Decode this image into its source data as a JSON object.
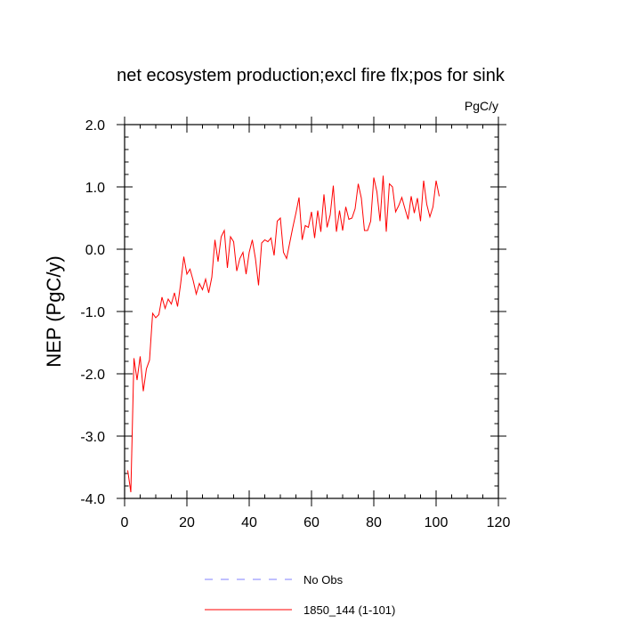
{
  "chart_data": {
    "type": "line",
    "title": "net ecosystem production;excl fire flx;pos for sink",
    "units": "PgC/y",
    "xlabel": "",
    "ylabel": "NEP  (PgC/y)",
    "xlim": [
      0,
      120
    ],
    "ylim": [
      -4.0,
      2.0
    ],
    "xticks": [
      0,
      20,
      40,
      60,
      80,
      100,
      120
    ],
    "xtick_labels": [
      "0",
      "20",
      "40",
      "60",
      "80",
      "100",
      "120"
    ],
    "yticks": [
      -4.0,
      -3.0,
      -2.0,
      -1.0,
      0.0,
      1.0,
      2.0
    ],
    "ytick_labels": [
      "-4.0",
      "-3.0",
      "-2.0",
      "-1.0",
      "0.0",
      "1.0",
      "2.0"
    ],
    "grid": false,
    "legend_position": "bottom-center",
    "series": [
      {
        "name": "No Obs",
        "color": "#8080ff",
        "dashed": true,
        "x": [],
        "values": []
      },
      {
        "name": "1850_144 (1-101)",
        "color": "#ff0000",
        "dashed": false,
        "x": [
          1,
          2,
          3,
          4,
          5,
          6,
          7,
          8,
          9,
          10,
          11,
          12,
          13,
          14,
          15,
          16,
          17,
          18,
          19,
          20,
          21,
          22,
          23,
          24,
          25,
          26,
          27,
          28,
          29,
          30,
          31,
          32,
          33,
          34,
          35,
          36,
          37,
          38,
          39,
          40,
          41,
          42,
          43,
          44,
          45,
          46,
          47,
          48,
          49,
          50,
          51,
          52,
          53,
          54,
          55,
          56,
          57,
          58,
          59,
          60,
          61,
          62,
          63,
          64,
          65,
          66,
          67,
          68,
          69,
          70,
          71,
          72,
          73,
          74,
          75,
          76,
          77,
          78,
          79,
          80,
          81,
          82,
          83,
          84,
          85,
          86,
          87,
          88,
          89,
          90,
          91,
          92,
          93,
          94,
          95,
          96,
          97,
          98,
          99,
          100,
          101
        ],
        "values": [
          -3.55,
          -3.9,
          -1.75,
          -2.1,
          -1.72,
          -2.28,
          -1.92,
          -1.78,
          -1.03,
          -1.1,
          -1.05,
          -0.77,
          -0.95,
          -0.8,
          -0.88,
          -0.7,
          -0.92,
          -0.55,
          -0.12,
          -0.4,
          -0.32,
          -0.5,
          -0.72,
          -0.55,
          -0.65,
          -0.48,
          -0.7,
          -0.45,
          0.15,
          -0.2,
          0.2,
          0.3,
          -0.3,
          0.2,
          0.12,
          -0.35,
          -0.15,
          -0.05,
          -0.4,
          -0.05,
          0.15,
          -0.15,
          -0.58,
          0.1,
          0.15,
          0.12,
          0.18,
          -0.1,
          0.45,
          0.5,
          -0.05,
          -0.15,
          0.1,
          0.35,
          0.58,
          0.83,
          0.15,
          0.38,
          0.35,
          0.6,
          0.18,
          0.62,
          0.28,
          0.88,
          0.35,
          0.55,
          1.02,
          0.28,
          0.62,
          0.3,
          0.68,
          0.48,
          0.5,
          0.65,
          1.05,
          0.82,
          0.3,
          0.3,
          0.45,
          1.15,
          0.92,
          0.45,
          1.18,
          0.28,
          1.05,
          1.0,
          0.6,
          0.7,
          0.83,
          0.65,
          0.48,
          0.85,
          0.58,
          0.82,
          0.45,
          1.1,
          0.72,
          0.52,
          0.68,
          1.1,
          0.85
        ]
      }
    ]
  }
}
